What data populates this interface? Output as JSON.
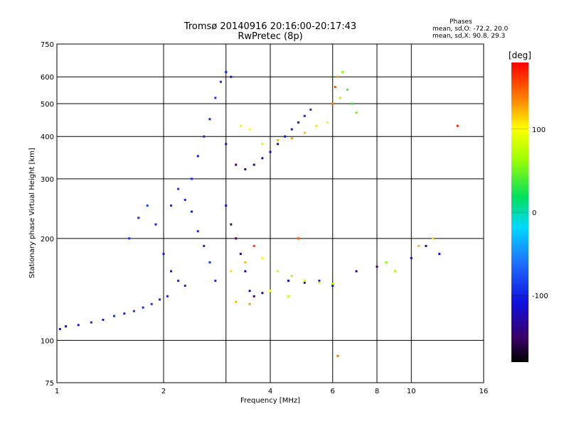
{
  "chart_data": {
    "type": "scatter",
    "title": "Tromsø 20140916 20:16:00-20:17:43",
    "subtitle": "RwPretec (8p)",
    "xlabel": "Frequency [MHz]",
    "ylabel": "Stationary phase Virtual Height [km]",
    "x_scale": "log",
    "y_scale": "log",
    "xlim": [
      1,
      16
    ],
    "ylim": [
      75,
      750
    ],
    "x_ticks": [
      1,
      2,
      4,
      6,
      8,
      10,
      16
    ],
    "x_tick_labels": [
      "1",
      "2",
      "4",
      "6",
      "8",
      "10",
      "16"
    ],
    "x_grid_lines": [
      1,
      2,
      3,
      4,
      6,
      8,
      10,
      16
    ],
    "y_ticks": [
      75,
      100,
      200,
      300,
      400,
      500,
      600,
      750
    ],
    "y_tick_labels": [
      "75",
      "100",
      "200",
      "300",
      "400",
      "500",
      "600",
      "750"
    ],
    "grid": true,
    "stats": {
      "title": "Phases",
      "line_o": "mean, sd,O: -72.2, 20.0",
      "line_x": "mean, sd,X:  90.8, 29.3"
    },
    "colorbar": {
      "label": "[deg]",
      "range": [
        -180,
        180
      ],
      "ticks": [
        100,
        0,
        -100
      ],
      "tick_labels": [
        "100",
        "0",
        "-100"
      ],
      "colormap": "rainbow"
    },
    "colors": {
      "ordinary": "#1f6fe0",
      "extraordinary": "#f5a623"
    },
    "series": [
      {
        "values": [
          [
            1.02,
            108,
            -110
          ],
          [
            1.06,
            110,
            -120
          ],
          [
            1.15,
            111,
            -110
          ],
          [
            1.25,
            113,
            -100
          ],
          [
            1.35,
            115,
            -105
          ],
          [
            1.45,
            118,
            -95
          ],
          [
            1.55,
            120,
            -100
          ],
          [
            1.65,
            122,
            -90
          ],
          [
            1.75,
            125,
            -95
          ],
          [
            1.85,
            128,
            -90
          ],
          [
            1.95,
            132,
            -95
          ],
          [
            2.05,
            135,
            -100
          ],
          [
            1.6,
            200,
            -90
          ],
          [
            1.7,
            230,
            -95
          ],
          [
            1.8,
            250,
            -85
          ],
          [
            1.9,
            220,
            -100
          ],
          [
            2.0,
            180,
            -110
          ],
          [
            2.1,
            160,
            -105
          ],
          [
            2.2,
            150,
            -95
          ],
          [
            2.3,
            145,
            -100
          ],
          [
            2.4,
            300,
            -90
          ],
          [
            2.5,
            350,
            -100
          ],
          [
            2.6,
            400,
            -95
          ],
          [
            2.7,
            450,
            -100
          ],
          [
            2.8,
            520,
            -90
          ],
          [
            2.9,
            580,
            -95
          ],
          [
            3.0,
            620,
            -100
          ],
          [
            3.1,
            600,
            -110
          ],
          [
            3.0,
            380,
            -130
          ],
          [
            3.2,
            330,
            -140
          ],
          [
            3.4,
            320,
            -145
          ],
          [
            3.6,
            330,
            -140
          ],
          [
            3.8,
            345,
            -135
          ],
          [
            4.0,
            360,
            -130
          ],
          [
            4.2,
            380,
            -120
          ],
          [
            4.4,
            400,
            -110
          ],
          [
            4.6,
            420,
            -110
          ],
          [
            4.8,
            440,
            -100
          ],
          [
            5.0,
            460,
            -95
          ],
          [
            5.2,
            480,
            -90
          ],
          [
            3.0,
            250,
            -130
          ],
          [
            3.1,
            220,
            -140
          ],
          [
            3.2,
            200,
            -150
          ],
          [
            3.3,
            180,
            -140
          ],
          [
            3.4,
            160,
            -130
          ],
          [
            3.5,
            140,
            -140
          ],
          [
            3.6,
            135,
            -145
          ],
          [
            3.8,
            138,
            -130
          ],
          [
            2.1,
            250,
            -95
          ],
          [
            2.2,
            280,
            -90
          ],
          [
            2.3,
            260,
            -95
          ],
          [
            2.4,
            240,
            -100
          ],
          [
            2.5,
            210,
            -95
          ],
          [
            2.6,
            190,
            -100
          ],
          [
            2.7,
            170,
            -90
          ],
          [
            2.8,
            150,
            -95
          ],
          [
            4.5,
            150,
            -120
          ],
          [
            5.0,
            148,
            -110
          ],
          [
            5.5,
            150,
            -100
          ],
          [
            6.0,
            145,
            -120
          ],
          [
            7.0,
            160,
            -140
          ],
          [
            8.0,
            165,
            -150
          ],
          [
            9.0,
            160,
            -130
          ],
          [
            10.0,
            175,
            -120
          ],
          [
            11.0,
            190,
            -130
          ],
          [
            12.0,
            180,
            -110
          ]
        ]
      },
      {
        "values": [
          [
            3.3,
            430,
            90
          ],
          [
            3.5,
            420,
            100
          ],
          [
            3.8,
            380,
            110
          ],
          [
            4.2,
            390,
            120
          ],
          [
            4.6,
            395,
            130
          ],
          [
            5.0,
            410,
            120
          ],
          [
            5.4,
            430,
            110
          ],
          [
            5.8,
            440,
            100
          ],
          [
            6.0,
            500,
            140
          ],
          [
            6.1,
            560,
            150
          ],
          [
            6.2,
            600,
            130
          ],
          [
            6.4,
            620,
            60
          ],
          [
            6.6,
            550,
            40
          ],
          [
            6.8,
            500,
            30
          ],
          [
            7.0,
            470,
            50
          ],
          [
            6.3,
            520,
            70
          ],
          [
            3.1,
            160,
            110
          ],
          [
            3.4,
            170,
            120
          ],
          [
            3.8,
            175,
            100
          ],
          [
            4.2,
            160,
            80
          ],
          [
            4.6,
            155,
            70
          ],
          [
            5.0,
            150,
            90
          ],
          [
            5.5,
            148,
            80
          ],
          [
            6.0,
            147,
            60
          ],
          [
            3.2,
            130,
            120
          ],
          [
            3.5,
            128,
            130
          ],
          [
            4.0,
            140,
            100
          ],
          [
            4.5,
            135,
            80
          ],
          [
            8.5,
            170,
            60
          ],
          [
            9.0,
            160,
            70
          ],
          [
            10.5,
            190,
            120
          ],
          [
            11.5,
            200,
            110
          ],
          [
            13.5,
            430,
            170
          ],
          [
            4.8,
            200,
            150
          ],
          [
            3.6,
            190,
            160
          ],
          [
            6.2,
            90,
            140
          ]
        ]
      }
    ]
  }
}
